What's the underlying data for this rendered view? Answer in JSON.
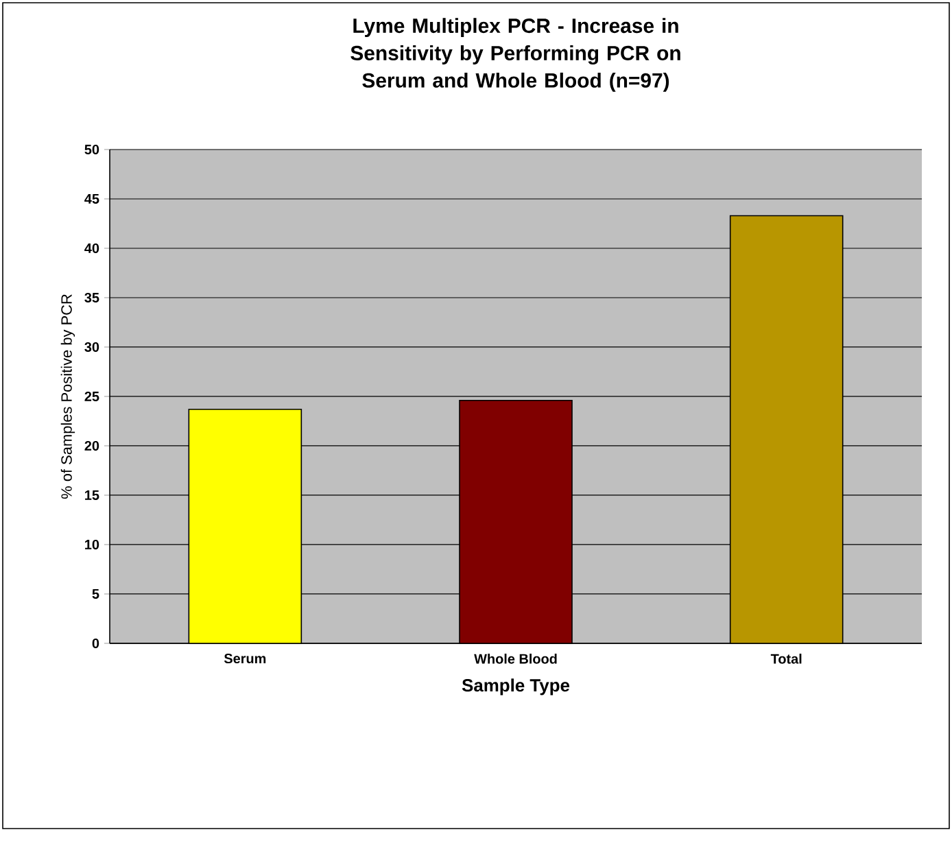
{
  "chart_data": {
    "type": "bar",
    "title": "Lyme Multiplex PCR - Increase in Sensitivity by Performing PCR on Serum and Whole Blood (n=97)",
    "xlabel": "Sample Type",
    "ylabel": "% of Samples Positive by PCR",
    "categories": [
      "Serum",
      "Whole Blood",
      "Total"
    ],
    "values": [
      23.7,
      24.6,
      43.3
    ],
    "colors": [
      "#ffff00",
      "#800000",
      "#b89600"
    ],
    "ylim": [
      0,
      50
    ],
    "yticks": [
      0,
      5,
      10,
      15,
      20,
      25,
      30,
      35,
      40,
      45,
      50
    ],
    "grid": "y"
  }
}
